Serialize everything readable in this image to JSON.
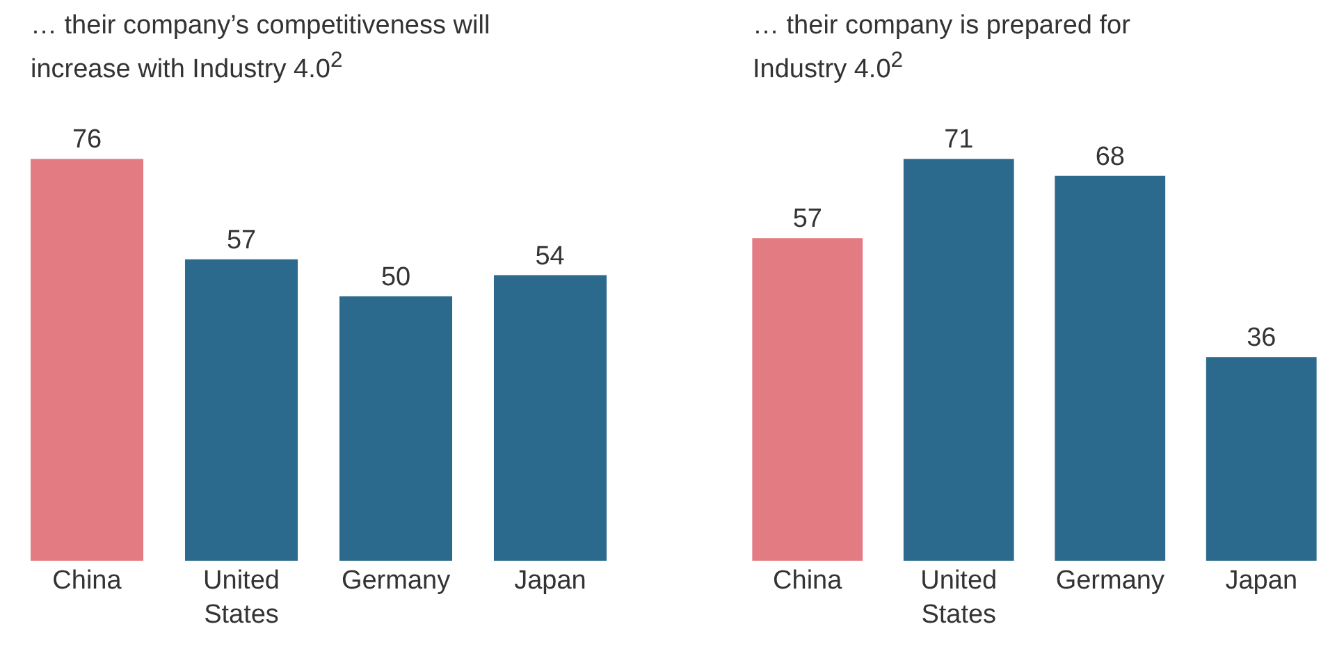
{
  "chart_data": [
    {
      "type": "bar",
      "title": "… their company’s competitiveness will increase with Industry 4.0$^{2}$",
      "categories": [
        "China",
        "United States",
        "Germany",
        "Japan"
      ],
      "values": [
        76,
        57,
        50,
        54
      ],
      "colors": [
        "#e37b82",
        "#2b6a8c",
        "#2b6a8c",
        "#2b6a8c"
      ],
      "tick_labels": "x",
      "data_labels": true
    },
    {
      "type": "bar",
      "title": "… their company is prepared for Industry 4.0$^{2}$",
      "categories": [
        "China",
        "United States",
        "Germany",
        "Japan"
      ],
      "values": [
        57,
        71,
        68,
        36
      ],
      "colors": [
        "#e37b82",
        "#2b6a8c",
        "#2b6a8c",
        "#2b6a8c"
      ],
      "tick_labels": "x",
      "data_labels": true
    }
  ]
}
